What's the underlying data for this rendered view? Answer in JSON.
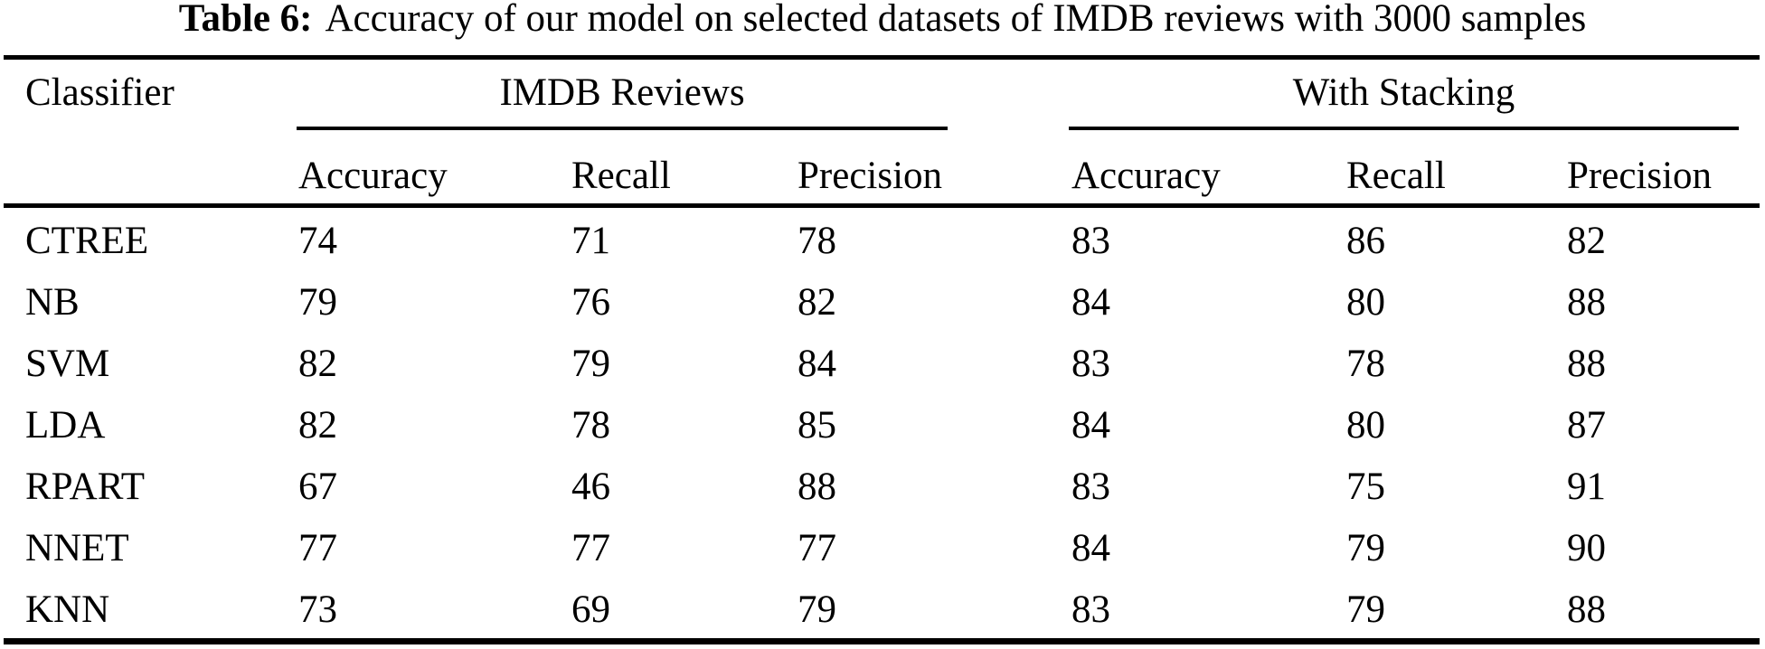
{
  "caption": {
    "label": "Table 6:",
    "text": "Accuracy of our model on selected datasets of IMDB reviews with 3000 samples"
  },
  "table": {
    "row_header": "Classifier",
    "groups": [
      {
        "label": "IMDB Reviews"
      },
      {
        "label": "With Stacking"
      }
    ],
    "subheaders": [
      "Accuracy",
      "Recall",
      "Precision",
      "Accuracy",
      "Recall",
      "Precision"
    ],
    "rows": [
      {
        "name": "CTREE",
        "values": [
          "74",
          "71",
          "78",
          "83",
          "86",
          "82"
        ]
      },
      {
        "name": "NB",
        "values": [
          "79",
          "76",
          "82",
          "84",
          "80",
          "88"
        ]
      },
      {
        "name": "SVM",
        "values": [
          "82",
          "79",
          "84",
          "83",
          "78",
          "88"
        ]
      },
      {
        "name": "LDA",
        "values": [
          "82",
          "78",
          "85",
          "84",
          "80",
          "87"
        ]
      },
      {
        "name": "RPART",
        "values": [
          "67",
          "46",
          "88",
          "83",
          "75",
          "91"
        ]
      },
      {
        "name": "NNET",
        "values": [
          "77",
          "77",
          "77",
          "84",
          "79",
          "90"
        ]
      },
      {
        "name": "KNN",
        "values": [
          "73",
          "69",
          "79",
          "83",
          "79",
          "88"
        ]
      }
    ]
  },
  "chart_data": {
    "type": "table",
    "title": "Table 6: Accuracy of our model on selected datasets of IMDB reviews with 3000 samples",
    "column_groups": [
      "IMDB Reviews",
      "With Stacking"
    ],
    "columns": [
      "Classifier",
      "IMDB Accuracy",
      "IMDB Recall",
      "IMDB Precision",
      "Stacking Accuracy",
      "Stacking Recall",
      "Stacking Precision"
    ],
    "rows": [
      [
        "CTREE",
        74,
        71,
        78,
        83,
        86,
        82
      ],
      [
        "NB",
        79,
        76,
        82,
        84,
        80,
        88
      ],
      [
        "SVM",
        82,
        79,
        84,
        83,
        78,
        88
      ],
      [
        "LDA",
        82,
        78,
        85,
        84,
        80,
        87
      ],
      [
        "RPART",
        67,
        46,
        88,
        83,
        75,
        91
      ],
      [
        "NNET",
        77,
        77,
        77,
        84,
        79,
        90
      ],
      [
        "KNN",
        73,
        69,
        79,
        83,
        79,
        88
      ]
    ]
  }
}
